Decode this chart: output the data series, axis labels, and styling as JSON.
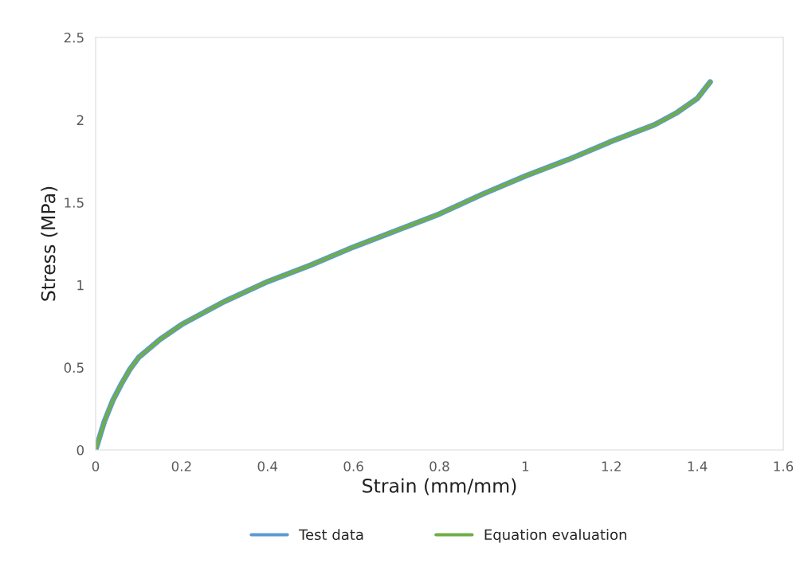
{
  "chart_data": {
    "type": "line",
    "xlabel": "Strain (mm/mm)",
    "ylabel": "Stress (MPa)",
    "xlim": [
      0,
      1.6
    ],
    "ylim": [
      0,
      2.5
    ],
    "xticks": [
      0,
      0.2,
      0.4,
      0.6,
      0.8,
      1,
      1.2,
      1.4,
      1.6
    ],
    "yticks": [
      0,
      0.5,
      1,
      1.5,
      2,
      2.5
    ],
    "grid": false,
    "legend": "bottom",
    "marker": "none",
    "line_style": "solid",
    "series": [
      {
        "name": "Test data",
        "color": "#5b9bd5",
        "x": [
          0,
          0.02,
          0.04,
          0.06,
          0.08,
          0.1,
          0.15,
          0.2,
          0.25,
          0.3,
          0.35,
          0.4,
          0.5,
          0.6,
          0.7,
          0.8,
          0.9,
          1.0,
          1.1,
          1.2,
          1.3,
          1.35,
          1.4,
          1.43
        ],
        "values": [
          0,
          0.17,
          0.3,
          0.4,
          0.49,
          0.56,
          0.67,
          0.76,
          0.83,
          0.9,
          0.96,
          1.02,
          1.12,
          1.23,
          1.33,
          1.43,
          1.55,
          1.66,
          1.76,
          1.87,
          1.97,
          2.04,
          2.13,
          2.23
        ]
      },
      {
        "name": "Equation evaluation",
        "color": "#70ad47",
        "x": [
          0,
          0.02,
          0.04,
          0.06,
          0.08,
          0.1,
          0.15,
          0.2,
          0.25,
          0.3,
          0.35,
          0.4,
          0.5,
          0.6,
          0.7,
          0.8,
          0.9,
          1.0,
          1.1,
          1.2,
          1.3,
          1.35,
          1.4,
          1.43
        ],
        "values": [
          0,
          0.17,
          0.3,
          0.4,
          0.49,
          0.56,
          0.67,
          0.76,
          0.83,
          0.9,
          0.96,
          1.02,
          1.12,
          1.23,
          1.33,
          1.43,
          1.55,
          1.66,
          1.76,
          1.87,
          1.97,
          2.04,
          2.13,
          2.23
        ]
      }
    ]
  }
}
